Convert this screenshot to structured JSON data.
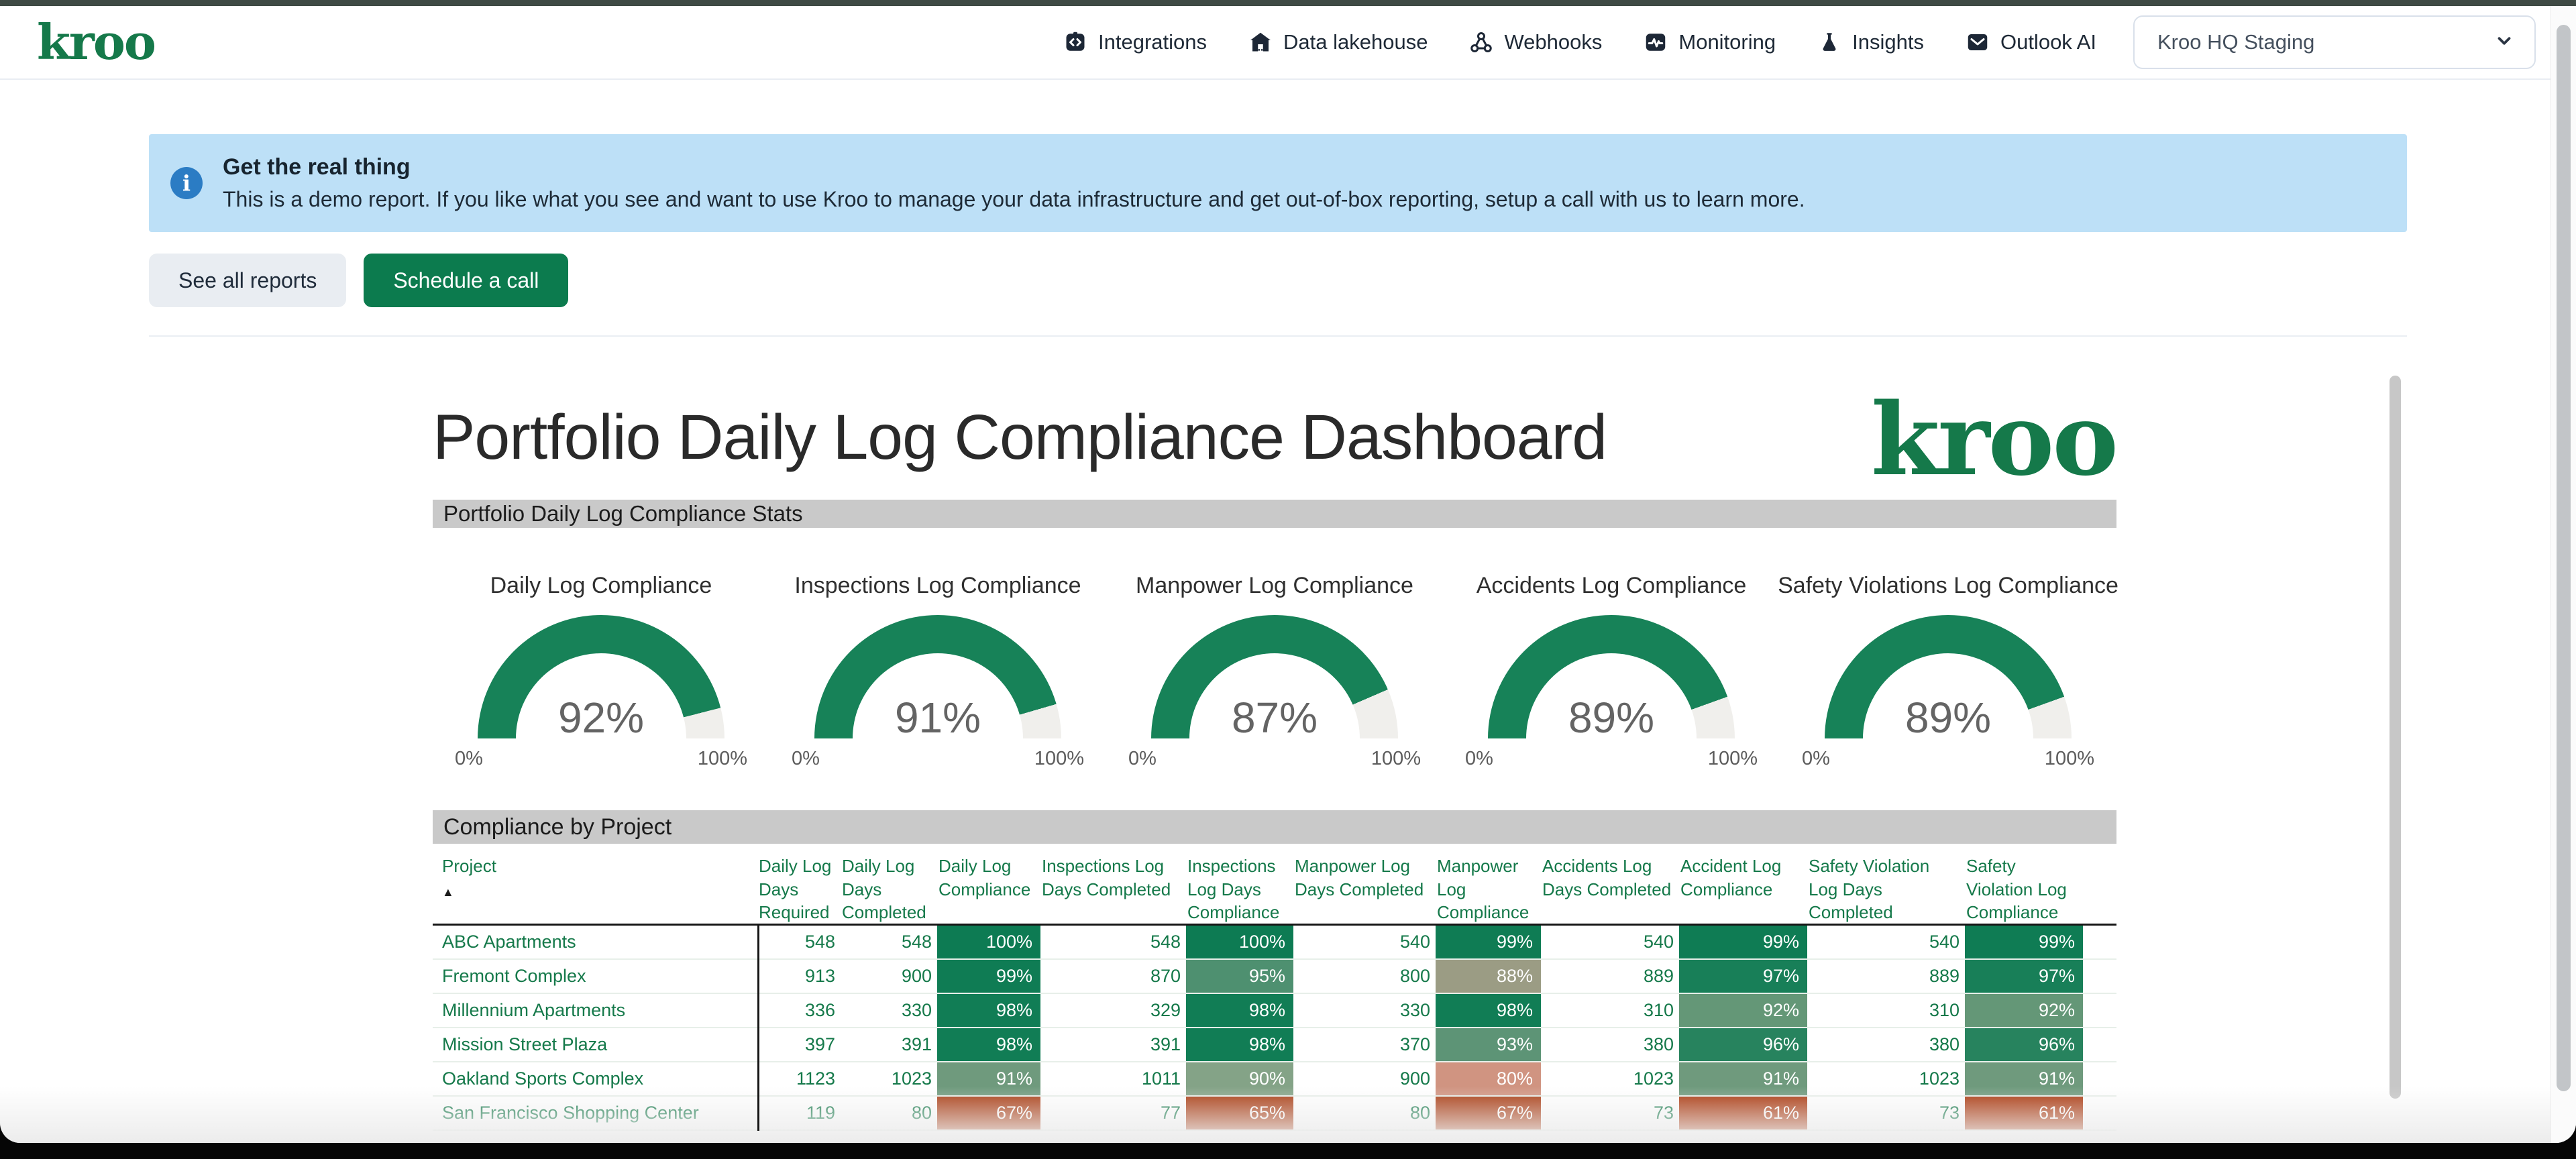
{
  "header": {
    "logo_text": "kroo",
    "nav_items": [
      {
        "label": "Integrations",
        "icon": "integrations-icon"
      },
      {
        "label": "Data lakehouse",
        "icon": "data-lakehouse-icon"
      },
      {
        "label": "Webhooks",
        "icon": "webhooks-icon"
      },
      {
        "label": "Monitoring",
        "icon": "monitoring-icon"
      },
      {
        "label": "Insights",
        "icon": "insights-icon"
      },
      {
        "label": "Outlook AI",
        "icon": "outlook-ai-icon"
      }
    ],
    "workspace_selector": {
      "value": "Kroo HQ Staging",
      "icon": "chevron-down-icon"
    }
  },
  "banner": {
    "icon": "info-icon",
    "title": "Get the real thing",
    "message": "This is a demo report. If you like what you see and want to use Kroo to manage your data infrastructure and get out-of-box reporting, setup a call with us to learn more."
  },
  "actions": {
    "see_all_reports_label": "See all reports",
    "schedule_call_label": "Schedule a call"
  },
  "report": {
    "title": "Portfolio Daily Log Compliance Dashboard",
    "brand_logo_text": "kroo",
    "stats_section_title": "Portfolio Daily Log Compliance Stats",
    "table_section_title": "Compliance by Project"
  },
  "colors": {
    "brand_green": "#15794a",
    "button_green": "#0c7b4e",
    "gauge_fill": "#178258",
    "gauge_track": "#f0efec",
    "banner_blue": "#bde0f7",
    "section_bar_gray": "#c9c9c9"
  },
  "chart_data": [
    {
      "type": "gauge",
      "title": "Daily Log Compliance",
      "value_pct": 92,
      "min_label": "0%",
      "max_label": "100%",
      "fill_color": "#178258",
      "track_color": "#f0efec"
    },
    {
      "type": "gauge",
      "title": "Inspections Log Compliance",
      "value_pct": 91,
      "min_label": "0%",
      "max_label": "100%",
      "fill_color": "#178258",
      "track_color": "#f0efec"
    },
    {
      "type": "gauge",
      "title": "Manpower Log Compliance",
      "value_pct": 87,
      "min_label": "0%",
      "max_label": "100%",
      "fill_color": "#178258",
      "track_color": "#f0efec"
    },
    {
      "type": "gauge",
      "title": "Accidents Log Compliance",
      "value_pct": 89,
      "min_label": "0%",
      "max_label": "100%",
      "fill_color": "#178258",
      "track_color": "#f0efec"
    },
    {
      "type": "gauge",
      "title": "Safety Violations Log Compliance",
      "value_pct": 89,
      "min_label": "0%",
      "max_label": "100%",
      "fill_color": "#178258",
      "track_color": "#f0efec"
    },
    {
      "type": "table",
      "title": "Compliance by Project",
      "sort": {
        "column": "Project",
        "direction": "asc",
        "indicator": "▲"
      },
      "columns": [
        "Project",
        "Daily Log Days Required",
        "Daily Log Days Completed",
        "Daily Log Compliance",
        "Inspections Log Days Completed",
        "Inspections Log Days Compliance",
        "Manpower Log Days Completed",
        "Manpower Log Compliance",
        "Accidents Log Days Completed",
        "Accident Log Compliance",
        "Safety Violation Log Days Completed",
        "Safety Violation Log Compliance"
      ],
      "rows": [
        {
          "project": "ABC Apartments",
          "values": [
            "548",
            "548",
            "100%",
            "548",
            "100%",
            "540",
            "99%",
            "540",
            "99%",
            "540",
            "99%"
          ]
        },
        {
          "project": "Fremont Complex",
          "values": [
            "913",
            "900",
            "99%",
            "870",
            "95%",
            "800",
            "88%",
            "889",
            "97%",
            "889",
            "97%"
          ]
        },
        {
          "project": "Millennium Apartments",
          "values": [
            "336",
            "330",
            "98%",
            "329",
            "98%",
            "330",
            "98%",
            "310",
            "92%",
            "310",
            "92%"
          ]
        },
        {
          "project": "Mission Street Plaza",
          "values": [
            "397",
            "391",
            "98%",
            "391",
            "98%",
            "370",
            "93%",
            "380",
            "96%",
            "380",
            "96%"
          ]
        },
        {
          "project": "Oakland Sports Complex",
          "values": [
            "1123",
            "1023",
            "91%",
            "1011",
            "90%",
            "900",
            "80%",
            "1023",
            "91%",
            "1023",
            "91%"
          ]
        },
        {
          "project": "San Francisco Shopping Center",
          "values": [
            "119",
            "80",
            "67%",
            "77",
            "65%",
            "80",
            "67%",
            "73",
            "61%",
            "73",
            "61%"
          ]
        }
      ],
      "compliance_color_map": {
        "100%": "#0d7b53",
        "99%": "#0f7c54",
        "98%": "#117d55",
        "97%": "#187f58",
        "96%": "#27835e",
        "95%": "#4e9070",
        "93%": "#5d9476",
        "92%": "#649777",
        "91%": "#6f9a7d",
        "90%": "#84a387",
        "88%": "#9b9c84",
        "80%": "#d09481",
        "67%": "#a93b12",
        "65%": "#a93a10",
        "61%": "#aa360c"
      }
    }
  ]
}
